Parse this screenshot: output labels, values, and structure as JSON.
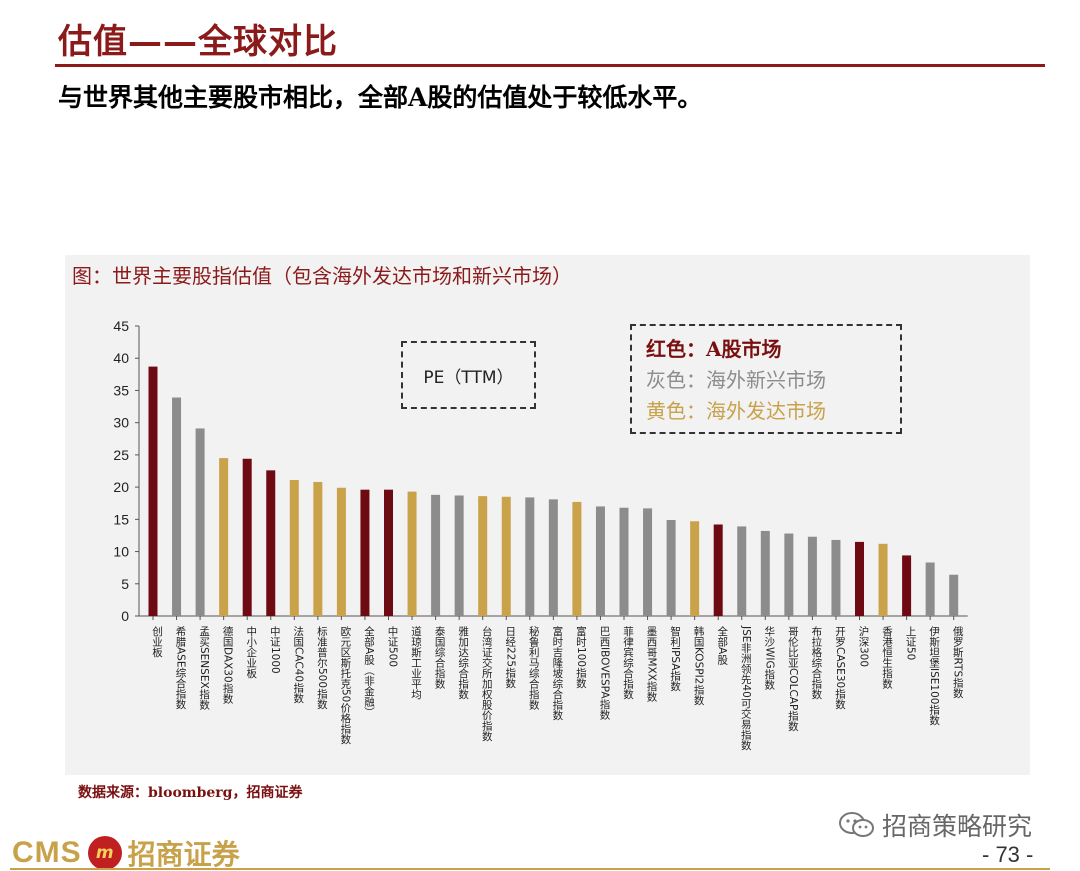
{
  "slide": {
    "title": "估值——全球对比",
    "subtitle": "与世界其他主要股市相比，全部A股的估值处于较低水平。"
  },
  "figure": {
    "caption": "图：世界主要股指估值（包含海外发达市场和新兴市场）",
    "pe_label": "PE（TTM）",
    "legend": {
      "red": "红色：A股市场",
      "gray": "灰色：海外新兴市场",
      "gold": "黄色：海外发达市场"
    },
    "source": "数据来源：bloomberg，招商证券"
  },
  "colors": {
    "red": "#6e0b12",
    "gray": "#8c8c8c",
    "gold": "#c9a24a"
  },
  "chart_data": {
    "type": "bar",
    "ylim": [
      0,
      45
    ],
    "yticks": [
      0,
      5,
      10,
      15,
      20,
      25,
      30,
      35,
      40,
      45
    ],
    "categories": [
      "创业板",
      "希腊ASE综合指数",
      "孟买SENSEX指数",
      "德国DAX30指数",
      "中小企业板",
      "中证1000",
      "法国CAC40指数",
      "标准普尔500指数",
      "欧元区斯托克50价格指数",
      "全部A股（非金融）",
      "中证500",
      "道琼斯工业平均",
      "泰国综合指数",
      "雅加达综合指数",
      "台湾证交所加权股价指数",
      "日经225指数",
      "秘鲁利马综合指数",
      "富时吉隆坡综合指数",
      "富时100指数",
      "巴西IBOVESPA指数",
      "菲律宾综合指数",
      "墨西哥MXX指数",
      "智利IPSA指数",
      "韩国KOSPI2指数",
      "全部A股",
      "JSE非洲领先40可交易指数",
      "华沙WIG指数",
      "哥伦比亚COLCAP指数",
      "布拉格综合指数",
      "开罗CASE30指数",
      "沪深300",
      "香港恒生指数",
      "上证50",
      "伊斯坦堡ISE100指数",
      "俄罗斯RTS指数"
    ],
    "values": [
      38.7,
      33.9,
      29.1,
      24.5,
      24.4,
      22.6,
      21.1,
      20.8,
      19.9,
      19.6,
      19.6,
      19.3,
      18.8,
      18.7,
      18.6,
      18.5,
      18.4,
      18.1,
      17.7,
      17.0,
      16.8,
      16.7,
      14.9,
      14.7,
      14.2,
      13.9,
      13.2,
      12.8,
      12.3,
      11.8,
      11.5,
      11.2,
      9.4,
      8.3,
      6.4
    ],
    "groups": [
      "red",
      "gray",
      "gray",
      "gold",
      "red",
      "red",
      "gold",
      "gold",
      "gold",
      "red",
      "red",
      "gold",
      "gray",
      "gray",
      "gold",
      "gold",
      "gray",
      "gray",
      "gold",
      "gray",
      "gray",
      "gray",
      "gray",
      "gold",
      "red",
      "gray",
      "gray",
      "gray",
      "gray",
      "gray",
      "red",
      "gold",
      "red",
      "gray",
      "gray"
    ]
  },
  "footer": {
    "logo_en": "CMS",
    "logo_badge": "m",
    "logo_cn": "招商证券",
    "watermark": "招商策略研究",
    "page_number": "- 73 -"
  }
}
